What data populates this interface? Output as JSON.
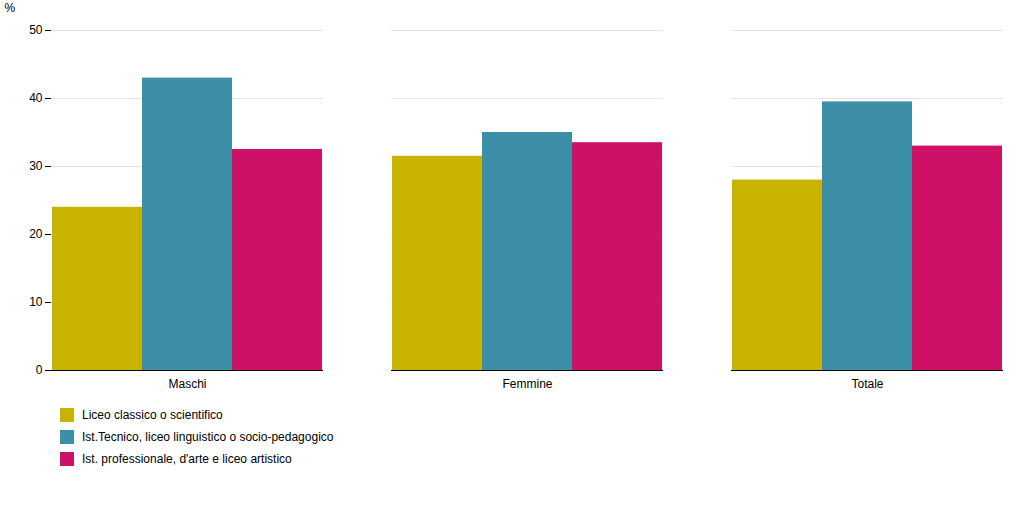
{
  "chart_data": {
    "type": "bar",
    "categories": [
      "Maschi",
      "Femmine",
      "Totale"
    ],
    "series": [
      {
        "name": "Liceo classico o scientifico",
        "color": "#c8b400",
        "values": [
          24.0,
          31.5,
          28.0
        ]
      },
      {
        "name": "Ist.Tecnico, liceo linguistico o socio-pedagogico",
        "color": "#3d8fa8",
        "values": [
          43.0,
          35.0,
          39.5
        ]
      },
      {
        "name": "Ist. professionale, d'arte e liceo artistico",
        "color": "#cc1166",
        "values": [
          32.5,
          33.5,
          33.0
        ]
      }
    ],
    "ylabel": "%",
    "ylim": [
      0,
      50
    ],
    "yticks": [
      0,
      10,
      20,
      30,
      40,
      50
    ],
    "grid": true,
    "legend": "bottom"
  }
}
